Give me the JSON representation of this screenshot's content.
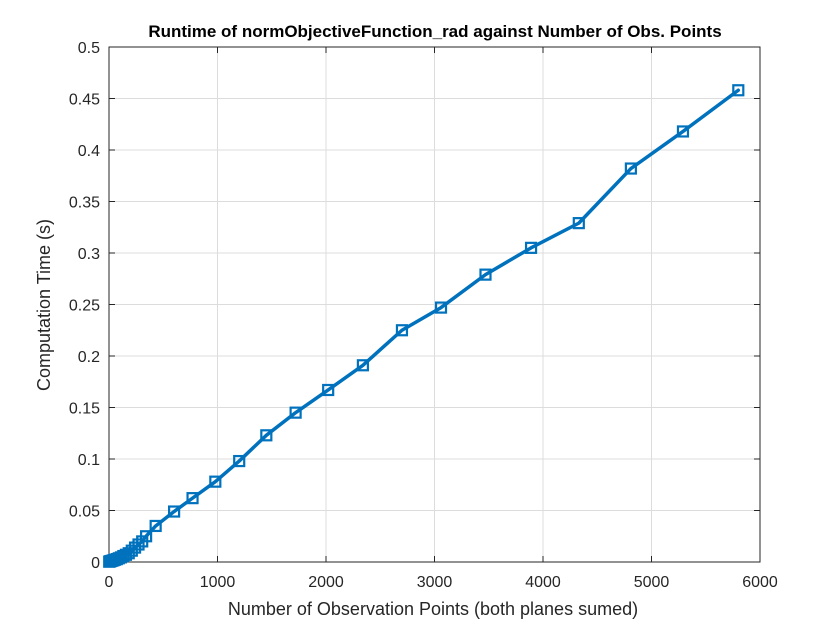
{
  "chart_data": {
    "type": "line",
    "title": "Runtime of normObjectiveFunction_rad against Number of Obs. Points",
    "xlabel": "Number of Observation Points (both planes sumed)",
    "ylabel": "Computation Time (s)",
    "xlim": [
      0,
      6000
    ],
    "ylim": [
      0,
      0.5
    ],
    "xticks": [
      0,
      1000,
      2000,
      3000,
      4000,
      5000,
      6000
    ],
    "yticks": [
      0,
      0.05,
      0.1,
      0.15,
      0.2,
      0.25,
      0.3,
      0.35,
      0.4,
      0.45,
      0.5
    ],
    "xtick_labels": [
      "0",
      "1000",
      "2000",
      "3000",
      "4000",
      "5000",
      "6000"
    ],
    "ytick_labels": [
      "0",
      "0.05",
      "0.1",
      "0.15",
      "0.2",
      "0.25",
      "0.3",
      "0.35",
      "0.4",
      "0.45",
      "0.5"
    ],
    "grid": true,
    "series": [
      {
        "color": "#0072BD",
        "marker": "square",
        "x": [
          2,
          6,
          12,
          20,
          30,
          42,
          56,
          72,
          90,
          110,
          132,
          156,
          182,
          210,
          240,
          272,
          306,
          342,
          430,
          600,
          770,
          980,
          1200,
          1450,
          1720,
          2020,
          2340,
          2700,
          3060,
          3470,
          3890,
          4330,
          4810,
          5290,
          5800
        ],
        "y": [
          0.0003,
          0.0005,
          0.0008,
          0.001,
          0.0013,
          0.0017,
          0.0022,
          0.0028,
          0.0036,
          0.0045,
          0.0058,
          0.007,
          0.0085,
          0.011,
          0.014,
          0.017,
          0.02,
          0.025,
          0.035,
          0.049,
          0.062,
          0.078,
          0.098,
          0.123,
          0.145,
          0.167,
          0.191,
          0.225,
          0.247,
          0.279,
          0.305,
          0.329,
          0.382,
          0.418,
          0.458
        ]
      }
    ]
  }
}
